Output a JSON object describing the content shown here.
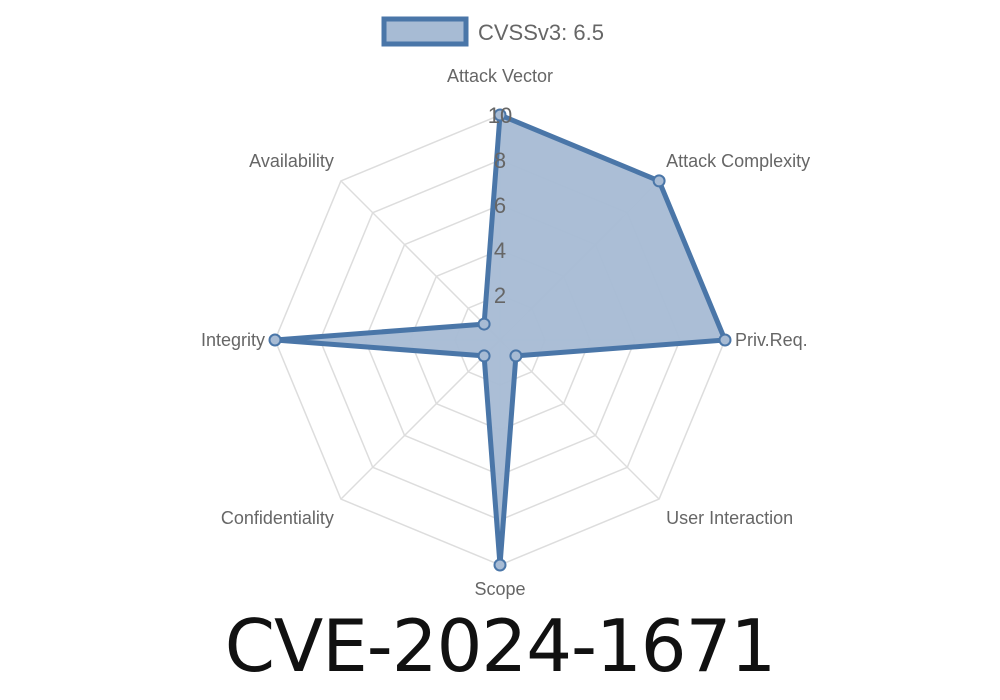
{
  "chart_data": {
    "type": "radar",
    "legend": {
      "label": "CVSSv3: 6.5",
      "position": "top"
    },
    "axes": [
      "Attack Vector",
      "Attack Complexity",
      "Priv.Req.",
      "User Interaction",
      "Scope",
      "Confidentiality",
      "Integrity",
      "Availability"
    ],
    "series": [
      {
        "name": "CVSSv3: 6.5",
        "values": [
          10,
          10,
          10,
          1,
          10,
          1,
          10,
          1
        ]
      }
    ],
    "rlim": [
      0,
      10
    ],
    "ticks": [
      "2",
      "4",
      "6",
      "8",
      "10"
    ],
    "grid": true,
    "colors": {
      "line": "#4a76a8",
      "fill": "#a7bbd4",
      "grid": "#dddddd",
      "text": "#666666"
    }
  },
  "title": "CVE-2024-1671"
}
